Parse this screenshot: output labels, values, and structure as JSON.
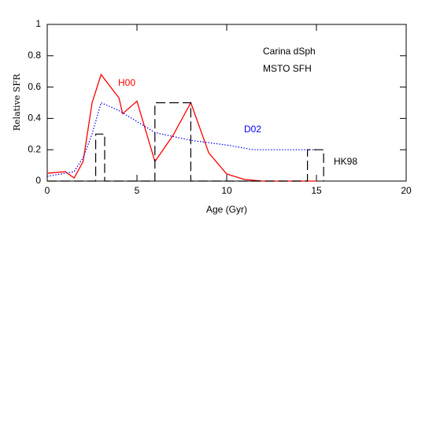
{
  "chart_data": {
    "type": "line",
    "xlabel": "Age (Gyr)",
    "ylabel": "Relative SFR",
    "annotations": [
      "Carina dSph",
      "MSTO SFH"
    ],
    "xlim": [
      0,
      20
    ],
    "xticks": [
      0,
      5,
      10,
      15,
      20
    ],
    "ylim": [
      0,
      1
    ],
    "yticks": [
      0,
      0.2,
      0.4,
      0.6,
      0.8,
      1
    ],
    "series": [
      {
        "name": "H00",
        "color": "#ff0000",
        "style": "solid",
        "x": [
          0,
          1,
          1.5,
          2,
          2.5,
          3,
          4,
          4.2,
          5,
          6,
          7,
          8,
          9,
          10,
          11,
          12,
          15
        ],
        "values": [
          0.05,
          0.06,
          0.02,
          0.125,
          0.5,
          0.68,
          0.53,
          0.43,
          0.51,
          0.125,
          0.29,
          0.5,
          0.18,
          0.045,
          0.01,
          0,
          0
        ]
      },
      {
        "name": "D02",
        "color": "#0000ff",
        "style": "dotted",
        "x": [
          0,
          1,
          1.5,
          2,
          2.5,
          3,
          4,
          5,
          6,
          8,
          10,
          11.5,
          15
        ],
        "values": [
          0.03,
          0.05,
          0.06,
          0.15,
          0.3,
          0.5,
          0.45,
          0.38,
          0.31,
          0.26,
          0.23,
          0.2,
          0.2
        ]
      },
      {
        "name": "HK98",
        "color": "#000000",
        "style": "dashed",
        "x": [
          0,
          2.7,
          2.7,
          3.2,
          3.2,
          6,
          6,
          8,
          8,
          14.5,
          14.5,
          15.4,
          15.4
        ],
        "values": [
          0,
          0,
          0.3,
          0.3,
          0,
          0,
          0.5,
          0.5,
          0,
          0,
          0.2,
          0.2,
          0
        ]
      }
    ]
  }
}
